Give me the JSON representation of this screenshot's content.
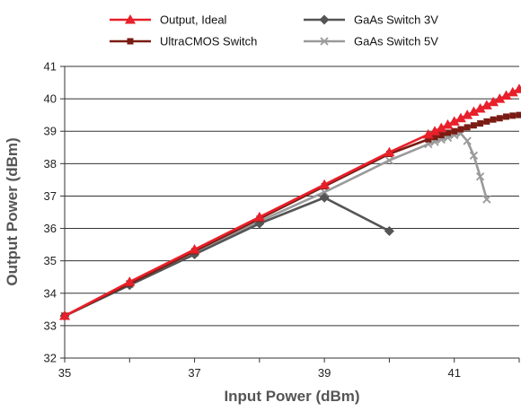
{
  "chart_data": {
    "type": "line",
    "xlabel": "Input Power (dBm)",
    "ylabel": "Output Power (dBm)",
    "xlim": [
      35,
      42
    ],
    "ylim": [
      32,
      41
    ],
    "xticks": [
      35,
      37,
      39,
      41
    ],
    "yticks": [
      32,
      33,
      34,
      35,
      36,
      37,
      38,
      39,
      40,
      41
    ],
    "grid": "horizontal",
    "legend_position": "top",
    "series": [
      {
        "name": "Output, Ideal",
        "color": "#e8202a",
        "marker": "triangle",
        "x": [
          35,
          36,
          37,
          38,
          39,
          40,
          40.6,
          40.7,
          40.8,
          40.9,
          41.0,
          41.1,
          41.2,
          41.3,
          41.4,
          41.5,
          41.6,
          41.7,
          41.8,
          41.9,
          42.0
        ],
        "y": [
          33.3,
          34.35,
          35.35,
          36.35,
          37.35,
          38.35,
          38.9,
          39.0,
          39.1,
          39.2,
          39.3,
          39.4,
          39.5,
          39.6,
          39.7,
          39.8,
          39.9,
          40.0,
          40.1,
          40.2,
          40.3
        ]
      },
      {
        "name": "UltraCMOS Switch",
        "color": "#7a1c14",
        "marker": "square",
        "x": [
          35,
          36,
          37,
          38,
          39,
          40,
          40.6,
          40.7,
          40.8,
          40.9,
          41.0,
          41.1,
          41.2,
          41.3,
          41.4,
          41.5,
          41.6,
          41.7,
          41.8,
          41.9,
          42.0
        ],
        "y": [
          33.3,
          34.3,
          35.3,
          36.3,
          37.3,
          38.3,
          38.75,
          38.82,
          38.88,
          38.95,
          39.0,
          39.06,
          39.12,
          39.18,
          39.24,
          39.3,
          39.36,
          39.4,
          39.45,
          39.48,
          39.5
        ]
      },
      {
        "name": "GaAs Switch 3V",
        "color": "#555555",
        "marker": "diamond",
        "x": [
          35,
          36,
          37,
          38,
          39,
          40
        ],
        "y": [
          33.3,
          34.25,
          35.2,
          36.15,
          36.95,
          35.92
        ]
      },
      {
        "name": "GaAs Switch 5V",
        "color": "#9a9a9a",
        "marker": "x",
        "x": [
          35,
          36,
          37,
          38,
          39,
          40,
          40.6,
          40.7,
          40.8,
          40.9,
          41.0,
          41.1,
          41.2,
          41.3,
          41.4,
          41.5
        ],
        "y": [
          33.3,
          34.28,
          35.25,
          36.22,
          37.12,
          38.1,
          38.6,
          38.67,
          38.74,
          38.8,
          38.88,
          38.93,
          38.7,
          38.25,
          37.6,
          36.9
        ]
      }
    ]
  }
}
